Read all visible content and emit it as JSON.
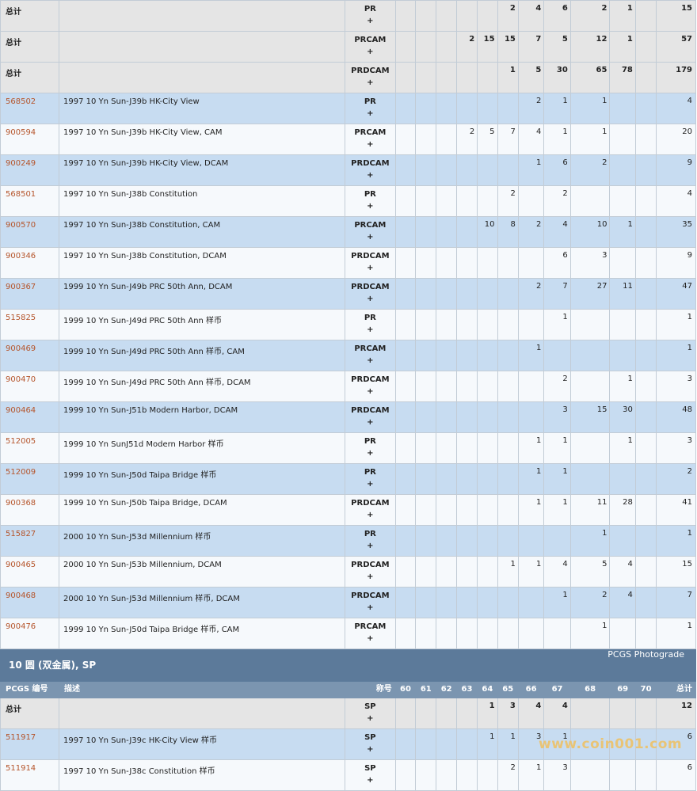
{
  "grade_columns": [
    "60",
    "61",
    "62",
    "63",
    "64",
    "65",
    "66",
    "67",
    "68",
    "69",
    "70"
  ],
  "pr_totals": [
    {
      "label": "总计",
      "grade": "PR",
      "values": [
        "",
        "",
        "",
        "",
        "",
        "2",
        "4",
        "6",
        "2",
        "1",
        ""
      ],
      "total": "15"
    },
    {
      "label": "总计",
      "grade": "PRCAM",
      "values": [
        "",
        "",
        "",
        "2",
        "15",
        "15",
        "7",
        "5",
        "12",
        "1",
        ""
      ],
      "total": "57"
    },
    {
      "label": "总计",
      "grade": "PRDCAM",
      "values": [
        "",
        "",
        "",
        "",
        "",
        "1",
        "5",
        "30",
        "65",
        "78",
        ""
      ],
      "total": "179"
    }
  ],
  "pr_rows": [
    {
      "code": "568502",
      "desc": "1997 10 Yn Sun-J39b HK-City View",
      "grade": "PR",
      "values": [
        "",
        "",
        "",
        "",
        "",
        "",
        "2",
        "1",
        "1",
        "",
        ""
      ],
      "total": "4"
    },
    {
      "code": "900594",
      "desc": "1997 10 Yn Sun-J39b HK-City View, CAM",
      "grade": "PRCAM",
      "values": [
        "",
        "",
        "",
        "2",
        "5",
        "7",
        "4",
        "1",
        "1",
        "",
        ""
      ],
      "total": "20"
    },
    {
      "code": "900249",
      "desc": "1997 10 Yn Sun-J39b HK-City View, DCAM",
      "grade": "PRDCAM",
      "values": [
        "",
        "",
        "",
        "",
        "",
        "",
        "1",
        "6",
        "2",
        "",
        ""
      ],
      "total": "9"
    },
    {
      "code": "568501",
      "desc": "1997 10 Yn Sun-J38b Constitution",
      "grade": "PR",
      "values": [
        "",
        "",
        "",
        "",
        "",
        "2",
        "",
        "2",
        "",
        "",
        ""
      ],
      "total": "4"
    },
    {
      "code": "900570",
      "desc": "1997 10 Yn Sun-J38b Constitution, CAM",
      "grade": "PRCAM",
      "values": [
        "",
        "",
        "",
        "",
        "10",
        "8",
        "2",
        "4",
        "10",
        "1",
        ""
      ],
      "total": "35"
    },
    {
      "code": "900346",
      "desc": "1997 10 Yn Sun-J38b Constitution, DCAM",
      "grade": "PRDCAM",
      "values": [
        "",
        "",
        "",
        "",
        "",
        "",
        "",
        "6",
        "3",
        "",
        ""
      ],
      "total": "9"
    },
    {
      "code": "900367",
      "desc": "1999 10 Yn Sun-J49b PRC 50th Ann, DCAM",
      "grade": "PRDCAM",
      "values": [
        "",
        "",
        "",
        "",
        "",
        "",
        "2",
        "7",
        "27",
        "11",
        ""
      ],
      "total": "47"
    },
    {
      "code": "515825",
      "desc": "1999 10 Yn Sun-J49d PRC 50th Ann 样币",
      "grade": "PR",
      "values": [
        "",
        "",
        "",
        "",
        "",
        "",
        "",
        "1",
        "",
        "",
        ""
      ],
      "total": "1"
    },
    {
      "code": "900469",
      "desc": "1999 10 Yn Sun-J49d PRC 50th Ann 样币, CAM",
      "grade": "PRCAM",
      "values": [
        "",
        "",
        "",
        "",
        "",
        "",
        "1",
        "",
        "",
        "",
        ""
      ],
      "total": "1"
    },
    {
      "code": "900470",
      "desc": "1999 10 Yn Sun-J49d PRC 50th Ann 样币, DCAM",
      "grade": "PRDCAM",
      "values": [
        "",
        "",
        "",
        "",
        "",
        "",
        "",
        "2",
        "",
        "1",
        ""
      ],
      "total": "3"
    },
    {
      "code": "900464",
      "desc": "1999 10 Yn Sun-J51b Modern Harbor, DCAM",
      "grade": "PRDCAM",
      "values": [
        "",
        "",
        "",
        "",
        "",
        "",
        "",
        "3",
        "15",
        "30",
        ""
      ],
      "total": "48"
    },
    {
      "code": "512005",
      "desc": "1999 10 Yn SunJ51d Modern Harbor 样币",
      "grade": "PR",
      "values": [
        "",
        "",
        "",
        "",
        "",
        "",
        "1",
        "1",
        "",
        "1",
        ""
      ],
      "total": "3"
    },
    {
      "code": "512009",
      "desc": "1999 10 Yn Sun-J50d Taipa Bridge 样币",
      "grade": "PR",
      "values": [
        "",
        "",
        "",
        "",
        "",
        "",
        "1",
        "1",
        "",
        "",
        ""
      ],
      "total": "2"
    },
    {
      "code": "900368",
      "desc": "1999 10 Yn Sun-J50b Taipa Bridge, DCAM",
      "grade": "PRDCAM",
      "values": [
        "",
        "",
        "",
        "",
        "",
        "",
        "1",
        "1",
        "11",
        "28",
        ""
      ],
      "total": "41"
    },
    {
      "code": "515827",
      "desc": "2000 10 Yn Sun-J53d Millennium 样币",
      "grade": "PR",
      "values": [
        "",
        "",
        "",
        "",
        "",
        "",
        "",
        "",
        "1",
        "",
        ""
      ],
      "total": "1"
    },
    {
      "code": "900465",
      "desc": "2000 10 Yn Sun-J53b Millennium, DCAM",
      "grade": "PRDCAM",
      "values": [
        "",
        "",
        "",
        "",
        "",
        "1",
        "1",
        "4",
        "5",
        "4",
        ""
      ],
      "total": "15"
    },
    {
      "code": "900468",
      "desc": "2000 10 Yn Sun-J53d Millennium 样币, DCAM",
      "grade": "PRDCAM",
      "values": [
        "",
        "",
        "",
        "",
        "",
        "",
        "",
        "1",
        "2",
        "4",
        ""
      ],
      "total": "7"
    },
    {
      "code": "900476",
      "desc": "1999 10 Yn Sun-J50d Taipa Bridge 样币, CAM",
      "grade": "PRCAM",
      "values": [
        "",
        "",
        "",
        "",
        "",
        "",
        "",
        "",
        "1",
        "",
        ""
      ],
      "total": "1"
    }
  ],
  "sp_section": {
    "title": "10 圆 (双金属), SP",
    "right_label": "PCGS Photograde",
    "headers": {
      "code": "PCGS 编号",
      "desc": "描述",
      "grade": "称号",
      "total": "总计"
    },
    "total_row": {
      "label": "总计",
      "grade": "SP",
      "values": [
        "",
        "",
        "",
        "",
        "1",
        "3",
        "4",
        "4",
        "",
        "",
        ""
      ],
      "total": "12"
    },
    "rows": [
      {
        "code": "511917",
        "desc": "1997 10 Yn Sun-J39c HK-City View 样币",
        "grade": "SP",
        "values": [
          "",
          "",
          "",
          "",
          "1",
          "1",
          "3",
          "1",
          "",
          "",
          ""
        ],
        "total": "6"
      },
      {
        "code": "511914",
        "desc": "1997 10 Yn Sun-J38c Constitution 样币",
        "grade": "SP",
        "values": [
          "",
          "",
          "",
          "",
          "",
          "2",
          "1",
          "3",
          "",
          "",
          ""
        ],
        "total": "6"
      }
    ]
  },
  "plus_sign": "+",
  "watermark": "www.coin001.com"
}
